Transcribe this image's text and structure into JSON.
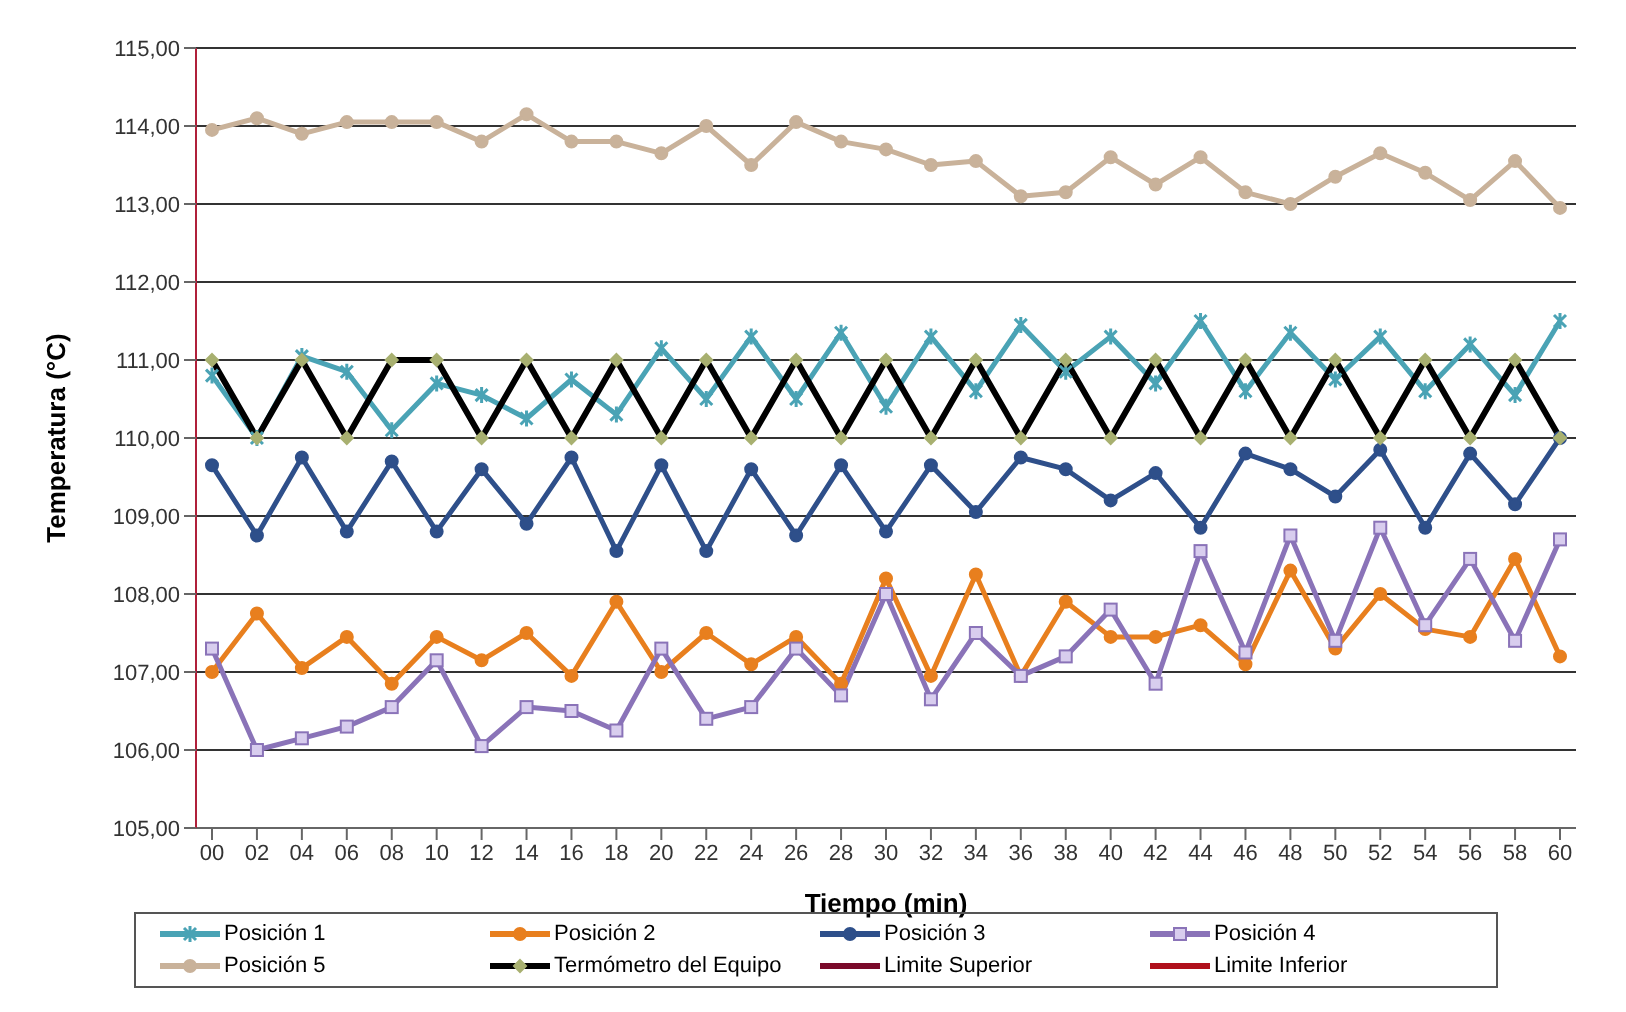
{
  "chart_data": {
    "type": "line",
    "xlabel": "Tiempo (min)",
    "ylabel": "Temperatura (°C)",
    "categories": [
      "00",
      "02",
      "04",
      "06",
      "08",
      "10",
      "12",
      "14",
      "16",
      "18",
      "20",
      "22",
      "24",
      "26",
      "28",
      "30",
      "32",
      "34",
      "36",
      "38",
      "40",
      "42",
      "44",
      "46",
      "48",
      "50",
      "52",
      "54",
      "56",
      "58",
      "60"
    ],
    "ylim": [
      105,
      115
    ],
    "yticks": [
      {
        "value": 105,
        "label": "105,00"
      },
      {
        "value": 106,
        "label": "106,00"
      },
      {
        "value": 107,
        "label": "107,00"
      },
      {
        "value": 108,
        "label": "108,00"
      },
      {
        "value": 109,
        "label": "109,00"
      },
      {
        "value": 110,
        "label": "110,00"
      },
      {
        "value": 111,
        "label": "111,00"
      },
      {
        "value": 112,
        "label": "112,00"
      },
      {
        "value": 113,
        "label": "113,00"
      },
      {
        "value": 114,
        "label": "114,00"
      },
      {
        "value": 115,
        "label": "115,00"
      }
    ],
    "grid": "y",
    "legend": "bottom",
    "series": [
      {
        "name": "Posición 1",
        "color": "#4aa3b5",
        "marker": "cross",
        "values": [
          110.8,
          110.0,
          111.05,
          110.85,
          110.1,
          110.7,
          110.55,
          110.25,
          110.75,
          110.3,
          111.15,
          110.5,
          111.3,
          110.5,
          111.35,
          110.4,
          111.3,
          110.6,
          111.45,
          110.85,
          111.3,
          110.7,
          111.5,
          110.6,
          111.35,
          110.75,
          111.3,
          110.6,
          111.2,
          110.55,
          111.5
        ]
      },
      {
        "name": "Posición 2",
        "color": "#e87f1e",
        "marker": "circle",
        "values": [
          107.0,
          107.75,
          107.05,
          107.45,
          106.85,
          107.45,
          107.15,
          107.5,
          106.95,
          107.9,
          107.0,
          107.5,
          107.1,
          107.45,
          106.85,
          108.2,
          106.95,
          108.25,
          106.95,
          107.9,
          107.45,
          107.45,
          107.6,
          107.1,
          108.3,
          107.3,
          108.0,
          107.55,
          107.45,
          108.45,
          107.2
        ]
      },
      {
        "name": "Posición 3",
        "color": "#2e4f8a",
        "marker": "circle",
        "values": [
          109.65,
          108.75,
          109.75,
          108.8,
          109.7,
          108.8,
          109.6,
          108.9,
          109.75,
          108.55,
          109.65,
          108.55,
          109.6,
          108.75,
          109.65,
          108.8,
          109.65,
          109.05,
          109.75,
          109.6,
          109.2,
          109.55,
          108.85,
          109.8,
          109.6,
          109.25,
          109.85,
          108.85,
          109.8,
          109.15,
          110.0
        ]
      },
      {
        "name": "Posición 4",
        "color": "#8a73b8",
        "marker": "square",
        "values": [
          107.3,
          106.0,
          106.15,
          106.3,
          106.55,
          107.15,
          106.05,
          106.55,
          106.5,
          106.25,
          107.3,
          106.4,
          106.55,
          107.3,
          106.7,
          108.0,
          106.65,
          107.5,
          106.95,
          107.2,
          107.8,
          106.85,
          108.55,
          107.25,
          108.75,
          107.4,
          108.85,
          107.6,
          108.45,
          107.4,
          108.7
        ]
      },
      {
        "name": "Posición 5",
        "color": "#c9b29a",
        "marker": "circle",
        "values": [
          113.95,
          114.1,
          113.9,
          114.05,
          114.05,
          114.05,
          113.8,
          114.15,
          113.8,
          113.8,
          113.65,
          114.0,
          113.5,
          114.05,
          113.8,
          113.7,
          113.5,
          113.55,
          113.1,
          113.15,
          113.6,
          113.25,
          113.6,
          113.15,
          113.0,
          113.35,
          113.65,
          113.4,
          113.05,
          113.55,
          112.95
        ]
      },
      {
        "name": "Termómetro del Equipo",
        "color": "#000000",
        "marker": "diamond",
        "values": [
          111,
          110,
          111,
          110,
          111,
          111,
          110,
          111,
          110,
          111,
          110,
          111,
          110,
          111,
          110,
          111,
          110,
          111,
          110,
          111,
          110,
          111,
          110,
          111,
          110,
          111,
          110,
          111,
          110,
          111,
          110
        ]
      },
      {
        "name": "Limite Superior",
        "color": "#7a0a2a",
        "marker": "none",
        "values": [
          null,
          null,
          null,
          null,
          null,
          null,
          null,
          null,
          null,
          null,
          null,
          null,
          null,
          null,
          null,
          null,
          null,
          null,
          null,
          null,
          null,
          null,
          null,
          null,
          null,
          null,
          null,
          null,
          null,
          null,
          null
        ]
      },
      {
        "name": "Limite Inferior",
        "color": "#b0101c",
        "marker": "none",
        "values": [
          null,
          null,
          null,
          null,
          null,
          null,
          null,
          null,
          null,
          null,
          null,
          null,
          null,
          null,
          null,
          null,
          null,
          null,
          null,
          null,
          null,
          null,
          null,
          null,
          null,
          null,
          null,
          null,
          null,
          null,
          null
        ]
      }
    ]
  }
}
